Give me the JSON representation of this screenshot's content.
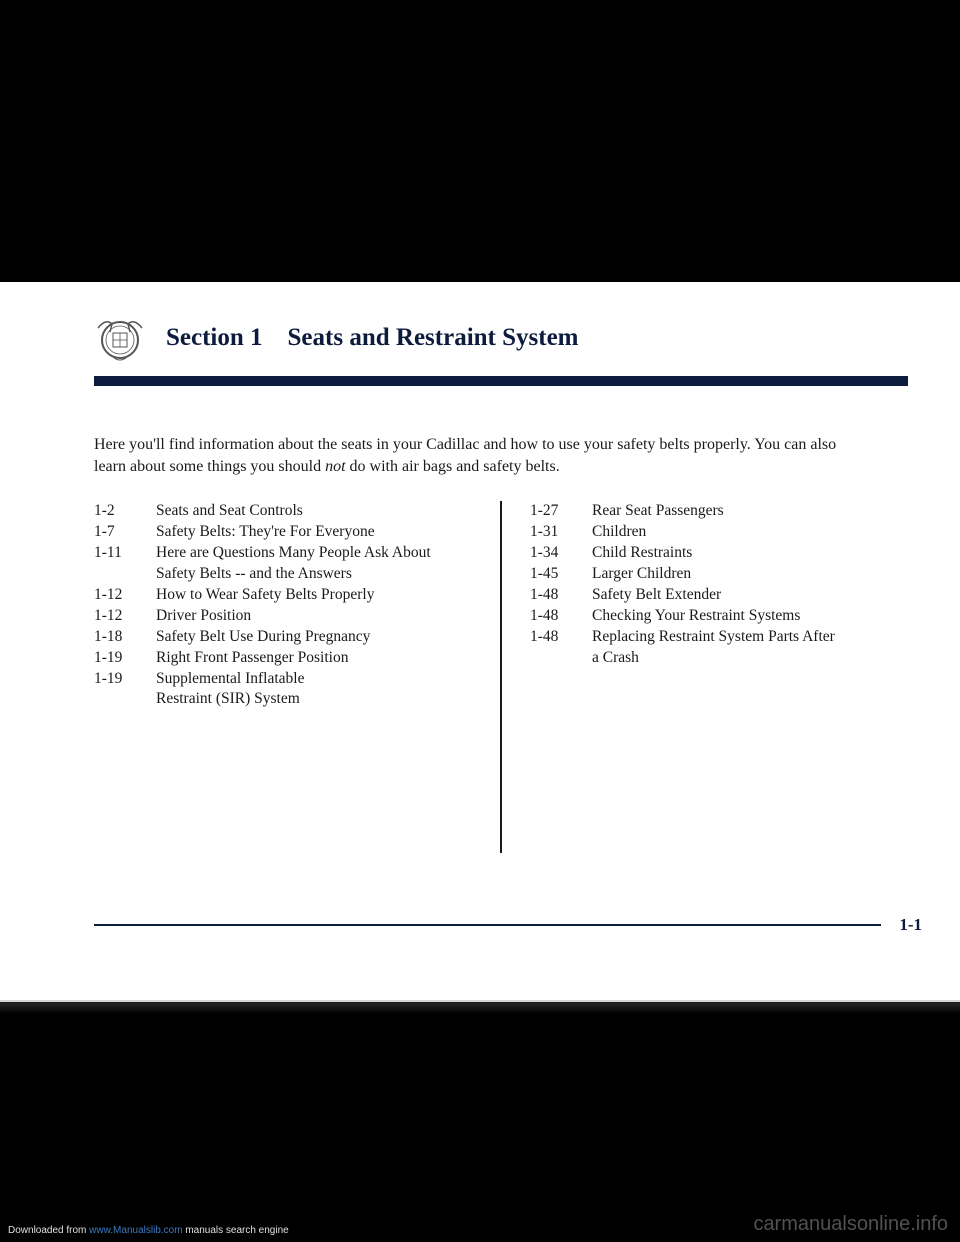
{
  "header": {
    "section_label": "Section 1",
    "section_title": "Seats and Restraint System"
  },
  "intro": {
    "line1": "Here you'll find information about the seats in your Cadillac and how to use your safety belts properly. You can also",
    "line2a": "learn about some things you should ",
    "line2_italic": "not",
    "line2b": " do with air bags and safety belts."
  },
  "toc_left": [
    {
      "page": "1-2",
      "title": "Seats and Seat Controls"
    },
    {
      "page": "1-7",
      "title": "Safety Belts: They're For Everyone"
    },
    {
      "page": "1-11",
      "title": "Here are Questions Many People Ask About"
    },
    {
      "page": "",
      "title": "Safety Belts -- and the Answers"
    },
    {
      "page": "1-12",
      "title": "How to Wear Safety Belts Properly"
    },
    {
      "page": "1-12",
      "title": "Driver Position"
    },
    {
      "page": "1-18",
      "title": "Safety Belt Use During Pregnancy"
    },
    {
      "page": "1-19",
      "title": "Right Front Passenger Position"
    },
    {
      "page": "1-19",
      "title": "Supplemental Inflatable"
    },
    {
      "page": "",
      "title": "Restraint (SIR) System"
    }
  ],
  "toc_right": [
    {
      "page": "1-27",
      "title": "Rear Seat Passengers"
    },
    {
      "page": "1-31",
      "title": "Children"
    },
    {
      "page": "1-34",
      "title": "Child Restraints"
    },
    {
      "page": "1-45",
      "title": "Larger Children"
    },
    {
      "page": "1-48",
      "title": "Safety Belt Extender"
    },
    {
      "page": "1-48",
      "title": "Checking Your Restraint Systems"
    },
    {
      "page": "1-48",
      "title": "Replacing Restraint System Parts After"
    },
    {
      "page": "",
      "title": "a Crash"
    }
  ],
  "page_number": "1-1",
  "footer": {
    "left_prefix": "Downloaded from ",
    "left_link": "www.Manualslib.com",
    "left_suffix": " manuals search engine",
    "right": "carmanualsonline.info"
  },
  "colors": {
    "brand_dark": "#0d1b3d",
    "text": "#1a1a1a",
    "page_bg": "#ffffff",
    "body_bg": "#000000"
  }
}
